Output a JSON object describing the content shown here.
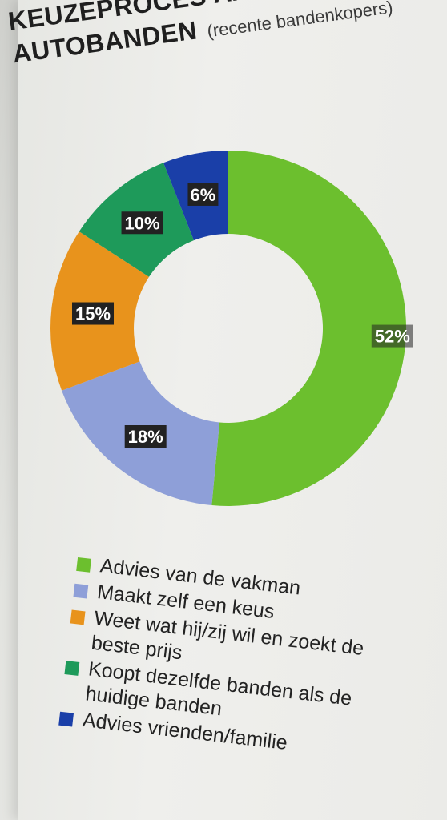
{
  "title": {
    "line1": "KEUZEPROCES AANSCHAF",
    "line2": "AUTOBANDEN",
    "subtitle": "(recente bandenkopers)"
  },
  "chart_data": {
    "type": "pie",
    "donut": true,
    "title": "KEUZEPROCES AANSCHAF AUTOBANDEN (recente bandenkopers)",
    "categories": [
      "Advies van de vakman",
      "Maakt zelf een keus",
      "Weet wat hij/zij wil en zoekt de beste prijs",
      "Koopt dezelfde banden als de huidige banden",
      "Advies vrienden/familie"
    ],
    "values": [
      52,
      18,
      15,
      10,
      6
    ],
    "labels": [
      "52%",
      "18%",
      "15%",
      "10%",
      "6%"
    ],
    "colors": [
      "#6cbf2e",
      "#8e9fd8",
      "#e8931c",
      "#1e9a5a",
      "#1a3fa8"
    ],
    "legend_position": "bottom"
  },
  "legend": [
    {
      "text": "Advies van de vakman",
      "color": "#6cbf2e"
    },
    {
      "text": "Maakt zelf een keus",
      "color": "#8e9fd8"
    },
    {
      "text": "Weet wat hij/zij wil en zoekt de beste prijs",
      "color": "#e8931c"
    },
    {
      "text": "Koopt dezelfde banden als de huidige banden",
      "color": "#1e9a5a"
    },
    {
      "text": "Advies vrienden/familie",
      "color": "#1a3fa8"
    }
  ]
}
